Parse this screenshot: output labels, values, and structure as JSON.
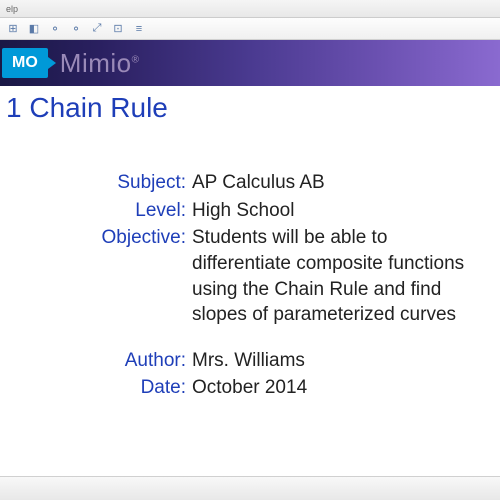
{
  "window": {
    "menu_hint": "elp"
  },
  "brand": {
    "tag": "MO",
    "name": "Mimio"
  },
  "page": {
    "title": "1 Chain Rule"
  },
  "fields": {
    "subject": {
      "label": "Subject:",
      "value": "AP Calculus AB"
    },
    "level": {
      "label": "Level:",
      "value": "High School"
    },
    "objective": {
      "label": "Objective:",
      "value": "Students will be able to differentiate composite functions using the Chain Rule and find slopes of parameterized curves"
    },
    "author": {
      "label": "Author:",
      "value": "Mrs. Williams"
    },
    "date": {
      "label": "Date:",
      "value": "October 2014"
    }
  },
  "toolbar": {
    "icons": [
      "⊞",
      "◧",
      "⚲",
      "⚲",
      "⤢",
      "⊡",
      "≡"
    ]
  }
}
